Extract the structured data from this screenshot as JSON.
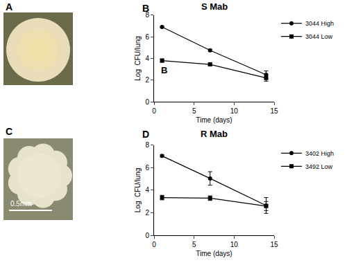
{
  "images": [
    {
      "panel_label": "A"
    },
    {
      "panel_label": "C",
      "scale_bar": "0.5mm"
    }
  ],
  "chart_data": [
    {
      "type": "line",
      "panel_label": "B",
      "title": "S Mab",
      "annotations": [
        "B"
      ],
      "x_label": "Time (days)",
      "y_label": "Log  CFU/lung",
      "xlim": [
        0,
        15
      ],
      "xticks": [
        0,
        5,
        10,
        15
      ],
      "ylim": [
        0,
        8
      ],
      "yticks": [
        0,
        2,
        4,
        6,
        8
      ],
      "grid": false,
      "legend": "right",
      "series": [
        {
          "name": "3044 High",
          "color": "#000000",
          "marker": "circle",
          "line_style": "solid",
          "x": [
            1,
            7,
            14
          ],
          "values": [
            6.9,
            4.75,
            2.5
          ],
          "error": [
            0.05,
            0.1,
            0.35
          ]
        },
        {
          "name": "3044 Low",
          "color": "#000000",
          "marker": "square",
          "line_style": "solid",
          "x": [
            1,
            7,
            14
          ],
          "values": [
            3.8,
            3.45,
            2.2
          ],
          "error": [
            0.15,
            0.1,
            0.3
          ]
        }
      ]
    },
    {
      "type": "line",
      "panel_label": "D",
      "title": "R Mab",
      "x_label": "Time (days)",
      "y_label": "Log  CFU/lung",
      "xlim": [
        0,
        15
      ],
      "xticks": [
        0,
        5,
        10,
        15
      ],
      "ylim": [
        0,
        8
      ],
      "yticks": [
        0,
        2,
        4,
        6,
        8
      ],
      "grid": false,
      "legend": "right",
      "series": [
        {
          "name": "3402 High",
          "color": "#000000",
          "marker": "circle",
          "line_style": "solid",
          "x": [
            1,
            7,
            14
          ],
          "values": [
            7.05,
            5.05,
            2.65
          ],
          "error": [
            0.1,
            0.6,
            0.7
          ]
        },
        {
          "name": "3492 Low",
          "color": "#000000",
          "marker": "square",
          "line_style": "solid",
          "x": [
            1,
            7,
            14
          ],
          "values": [
            3.35,
            3.3,
            2.6
          ],
          "error": [
            0.2,
            0.2,
            0.4
          ]
        }
      ]
    }
  ]
}
